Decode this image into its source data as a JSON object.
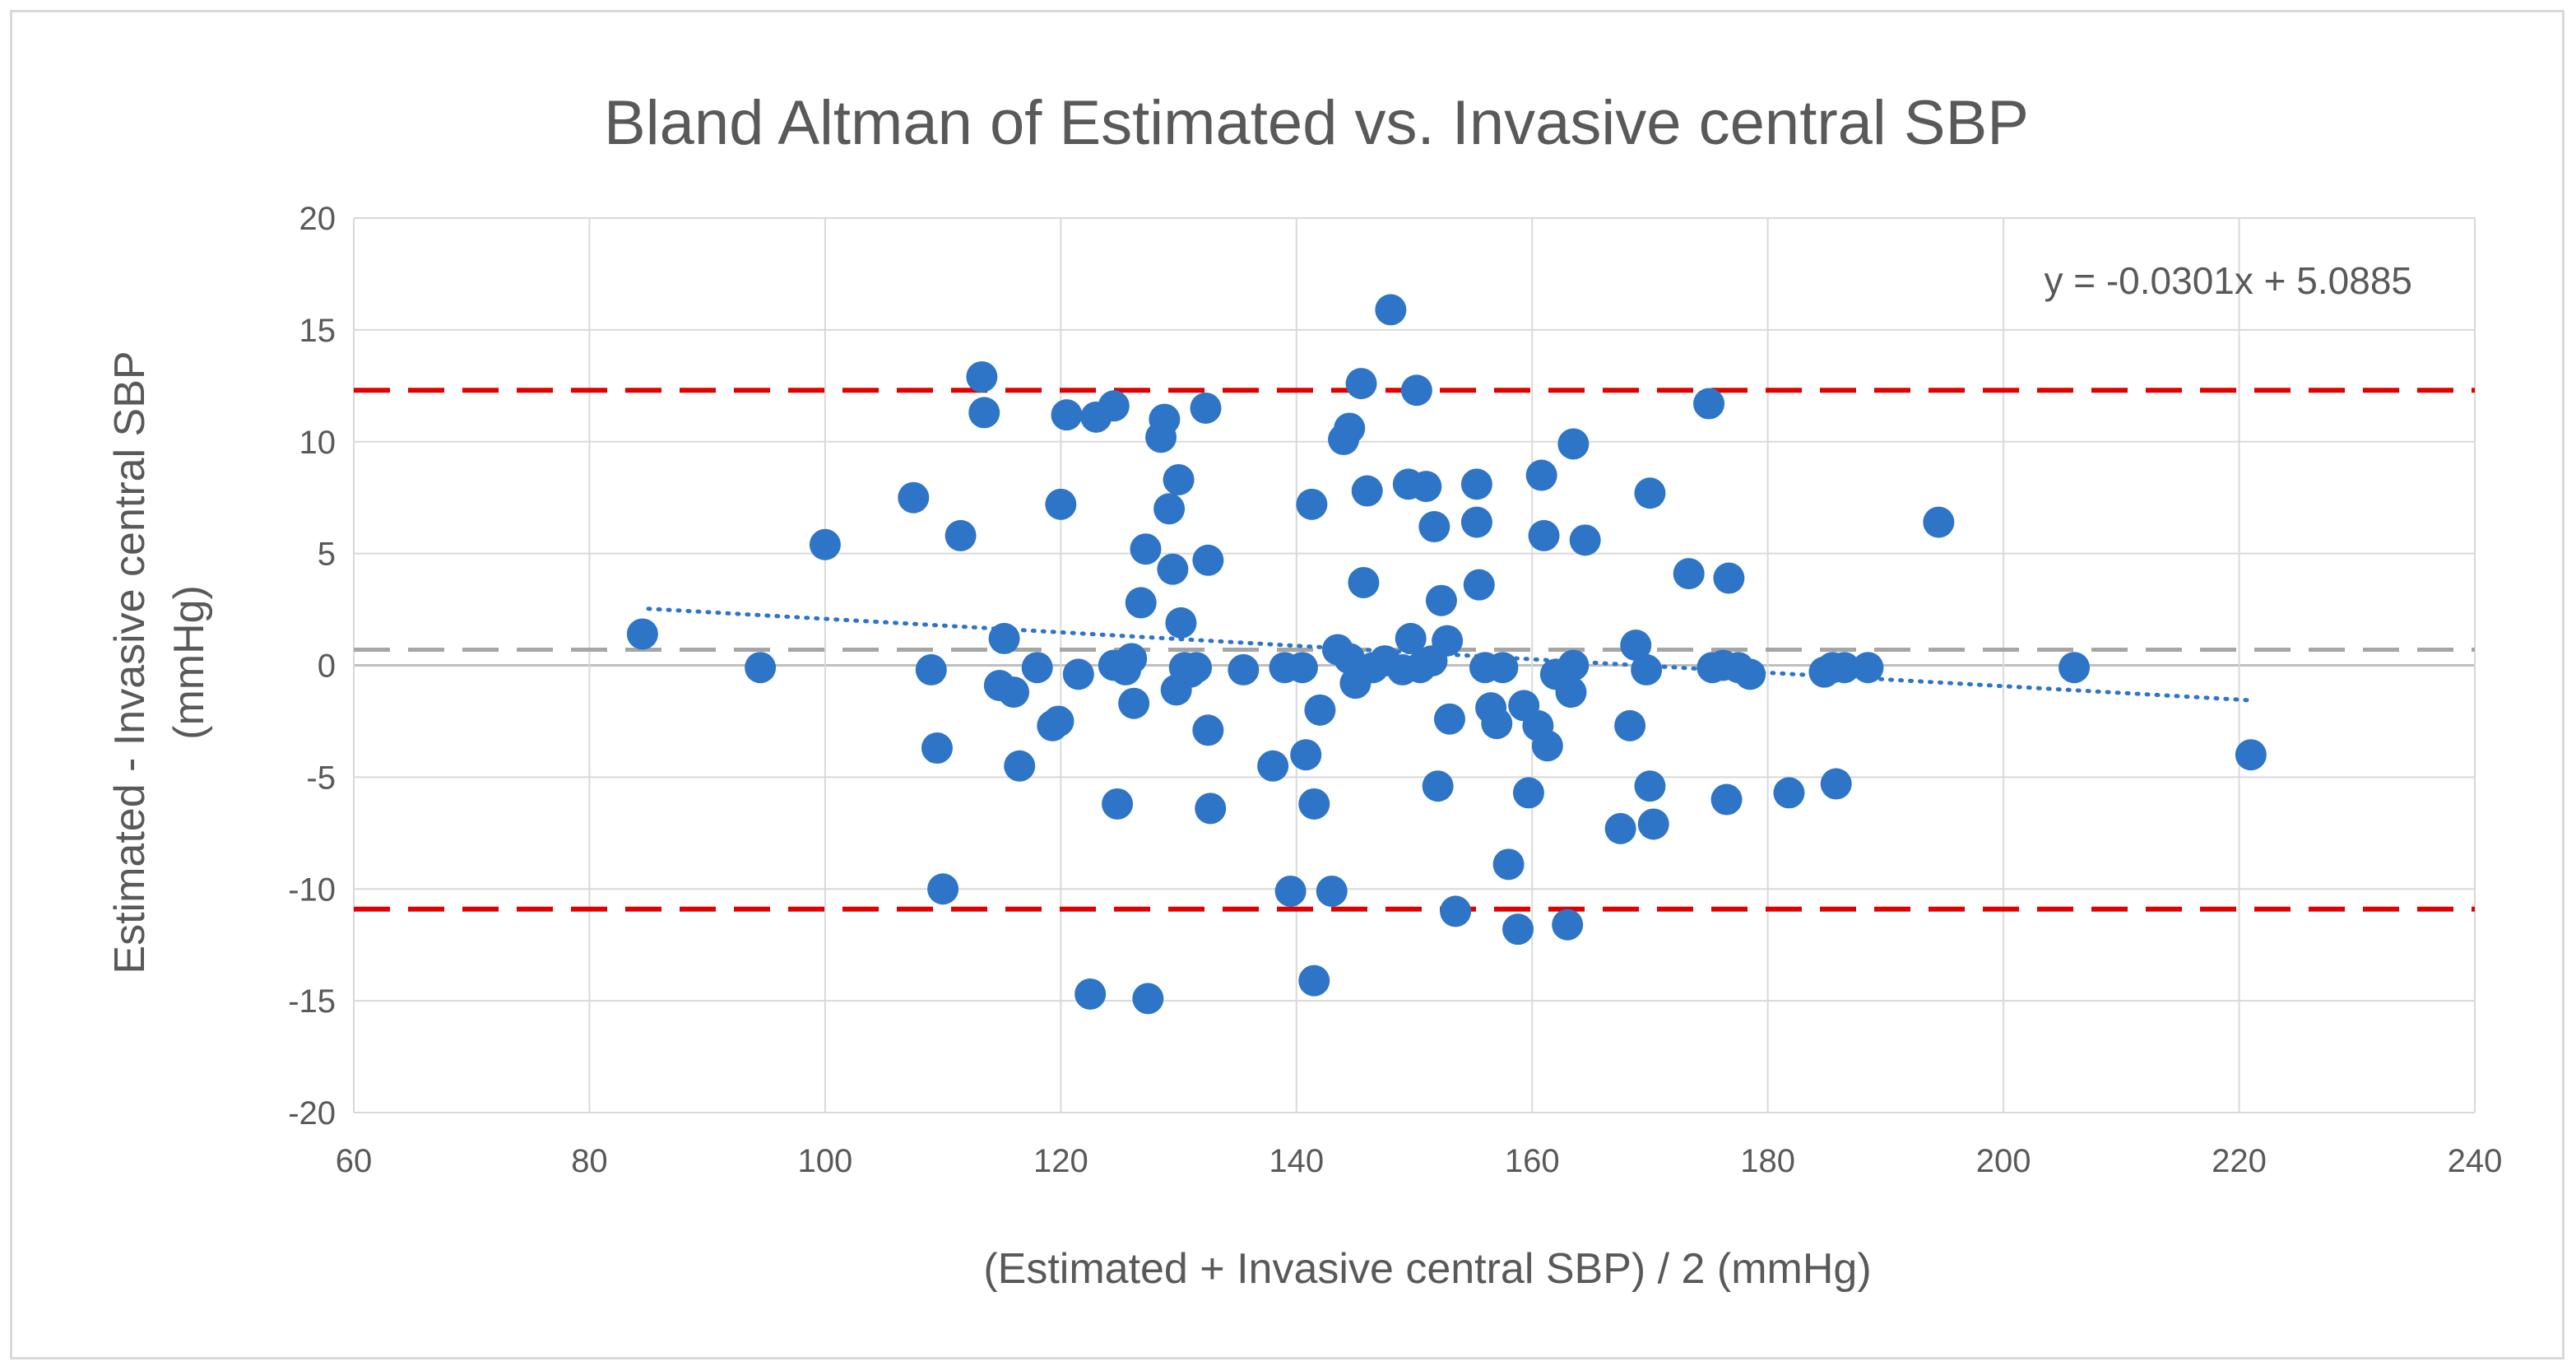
{
  "chart_data": {
    "type": "scatter",
    "title": "Bland Altman of Estimated vs. Invasive central SBP",
    "xlabel": "(Estimated + Invasive central SBP) / 2 (mmHg)",
    "ylabel_line1": "Estimated - Invasive central SBP",
    "ylabel_line2": "(mmHg)",
    "xlim": [
      60,
      240
    ],
    "ylim": [
      -20,
      20
    ],
    "x_ticks": [
      60,
      80,
      100,
      120,
      140,
      160,
      180,
      200,
      220,
      240
    ],
    "y_ticks": [
      -20,
      -15,
      -10,
      -5,
      0,
      5,
      10,
      15,
      20
    ],
    "grid": true,
    "colors": {
      "points": "#2e75c7",
      "loa": "#e00000",
      "mean": "#a6a6a6",
      "trend": "#2e75c7",
      "grid": "#d9d9d9",
      "text": "#595959"
    },
    "trendline": {
      "equation": "y = -0.0301x + 5.0885",
      "slope": -0.0301,
      "intercept": 5.0885,
      "x_range": [
        85,
        221
      ]
    },
    "mean_difference": 0.7,
    "upper_loa": 12.3,
    "lower_loa": -10.9,
    "points": [
      [
        84.5,
        1.4
      ],
      [
        94.5,
        -0.1
      ],
      [
        100,
        5.4
      ],
      [
        107.5,
        7.5
      ],
      [
        109,
        -0.2
      ],
      [
        109.5,
        -3.7
      ],
      [
        110,
        -10
      ],
      [
        111.5,
        5.8
      ],
      [
        113.3,
        12.9
      ],
      [
        113.5,
        11.3
      ],
      [
        115.2,
        1.2
      ],
      [
        114.8,
        -0.9
      ],
      [
        116,
        -1.2
      ],
      [
        116.5,
        -4.5
      ],
      [
        118,
        -0.1
      ],
      [
        119.3,
        -2.7
      ],
      [
        119.8,
        -2.5
      ],
      [
        120,
        7.2
      ],
      [
        120.5,
        11.2
      ],
      [
        121.5,
        -0.4
      ],
      [
        122.5,
        -14.7
      ],
      [
        123,
        11.1
      ],
      [
        124.5,
        11.6
      ],
      [
        124.5,
        0
      ],
      [
        124.8,
        -6.2
      ],
      [
        125.5,
        -0.2
      ],
      [
        126,
        0.3
      ],
      [
        126.2,
        -1.7
      ],
      [
        126.8,
        2.8
      ],
      [
        127.2,
        5.2
      ],
      [
        127.4,
        -14.9
      ],
      [
        128.5,
        10.2
      ],
      [
        128.8,
        11
      ],
      [
        129.2,
        7
      ],
      [
        129.5,
        4.3
      ],
      [
        129.8,
        -1.1
      ],
      [
        130,
        8.3
      ],
      [
        130.2,
        1.9
      ],
      [
        130.5,
        -0.1
      ],
      [
        131,
        -0.3
      ],
      [
        131.5,
        -0.1
      ],
      [
        132.3,
        11.5
      ],
      [
        132.5,
        4.7
      ],
      [
        132.5,
        -2.9
      ],
      [
        132.7,
        -6.4
      ],
      [
        135.5,
        -0.2
      ],
      [
        138,
        -4.5
      ],
      [
        139,
        -0.1
      ],
      [
        139.5,
        -10.1
      ],
      [
        140.5,
        -0.1
      ],
      [
        140.8,
        -4
      ],
      [
        141.3,
        7.2
      ],
      [
        141.5,
        -14.1
      ],
      [
        141.5,
        -6.2
      ],
      [
        142,
        -2
      ],
      [
        143,
        -10.1
      ],
      [
        143.5,
        0.7
      ],
      [
        144,
        10.1
      ],
      [
        144.5,
        10.6
      ],
      [
        144.5,
        0.3
      ],
      [
        145,
        -0.8
      ],
      [
        145.5,
        12.6
      ],
      [
        145.7,
        3.7
      ],
      [
        146,
        7.8
      ],
      [
        146.5,
        -0.1
      ],
      [
        147.5,
        0.2
      ],
      [
        148,
        15.9
      ],
      [
        149,
        -0.2
      ],
      [
        149.5,
        8.1
      ],
      [
        149.7,
        1.2
      ],
      [
        150.2,
        12.3
      ],
      [
        150.5,
        -0.1
      ],
      [
        151,
        8
      ],
      [
        151.5,
        0.2
      ],
      [
        151.7,
        6.2
      ],
      [
        152,
        -5.4
      ],
      [
        152.3,
        2.9
      ],
      [
        152.8,
        1.1
      ],
      [
        153,
        -2.4
      ],
      [
        153.5,
        -11
      ],
      [
        155.3,
        8.1
      ],
      [
        155.3,
        6.4
      ],
      [
        155.5,
        3.6
      ],
      [
        156,
        -0.1
      ],
      [
        156.5,
        -1.9
      ],
      [
        157,
        -2.6
      ],
      [
        157.5,
        -0.1
      ],
      [
        158,
        -8.9
      ],
      [
        158.8,
        -11.8
      ],
      [
        159.3,
        -1.8
      ],
      [
        159.7,
        -5.7
      ],
      [
        160.5,
        -2.7
      ],
      [
        160.8,
        8.5
      ],
      [
        161,
        5.8
      ],
      [
        161.3,
        -3.6
      ],
      [
        162,
        -0.4
      ],
      [
        163,
        -11.6
      ],
      [
        163.3,
        -1.2
      ],
      [
        163.5,
        0
      ],
      [
        163.5,
        9.9
      ],
      [
        164.5,
        5.6
      ],
      [
        167.5,
        -7.3
      ],
      [
        168.3,
        -2.7
      ],
      [
        168.8,
        0.9
      ],
      [
        169.7,
        -0.2
      ],
      [
        170,
        7.7
      ],
      [
        170,
        -5.4
      ],
      [
        170.3,
        -7.1
      ],
      [
        173.3,
        4.1
      ],
      [
        175,
        11.7
      ],
      [
        175.3,
        -0.1
      ],
      [
        176.2,
        0
      ],
      [
        176.5,
        -6
      ],
      [
        176.7,
        3.9
      ],
      [
        177.5,
        -0.1
      ],
      [
        178.5,
        -0.4
      ],
      [
        181.8,
        -5.7
      ],
      [
        184.8,
        -0.3
      ],
      [
        185.5,
        -0.1
      ],
      [
        185.8,
        -5.3
      ],
      [
        186.5,
        -0.1
      ],
      [
        188.5,
        -0.1
      ],
      [
        194.5,
        6.4
      ],
      [
        206,
        -0.1
      ],
      [
        221,
        -4
      ]
    ]
  }
}
